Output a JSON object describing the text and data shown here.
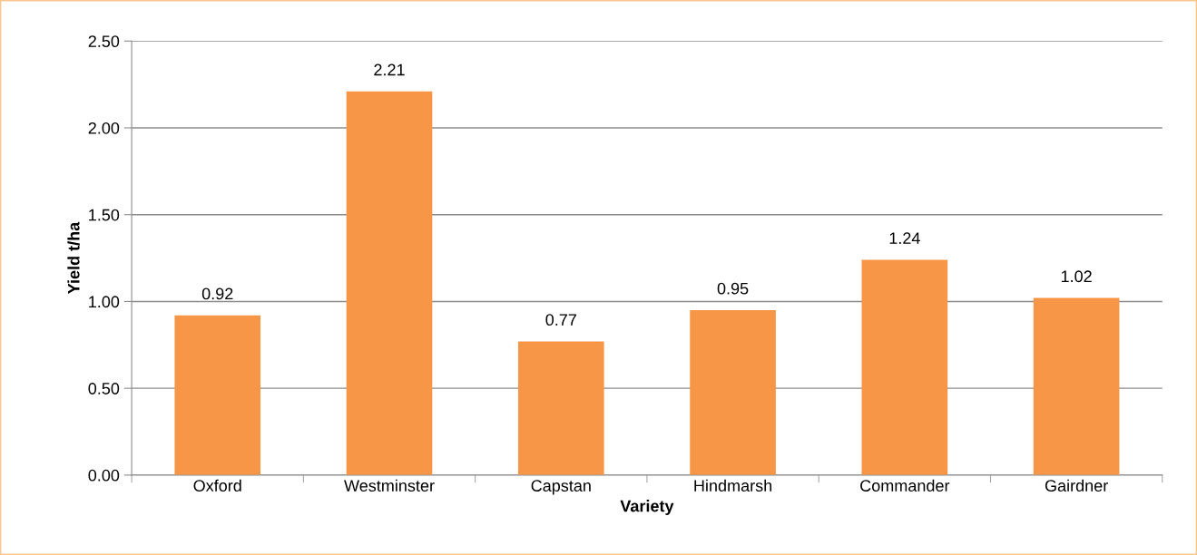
{
  "chart_data": {
    "type": "bar",
    "xlabel": "Variety",
    "ylabel": "Yield t/ha",
    "categories": [
      "Oxford",
      "Westminster",
      "Capstan",
      "Hindmarsh",
      "Commander",
      "Gairdner"
    ],
    "values": [
      0.92,
      2.21,
      0.77,
      0.95,
      1.24,
      1.02
    ],
    "color": "#f79646",
    "ylim": [
      0,
      2.5
    ],
    "yticks": [
      {
        "value": 0,
        "label": "0.00"
      },
      {
        "value": 0.5,
        "label": "0.50"
      },
      {
        "value": 1,
        "label": "1.00"
      },
      {
        "value": 1.5,
        "label": "1.50"
      },
      {
        "value": 2,
        "label": "2.00"
      },
      {
        "value": 2.5,
        "label": "2.50"
      }
    ],
    "grid": "y",
    "data_labels": true
  }
}
